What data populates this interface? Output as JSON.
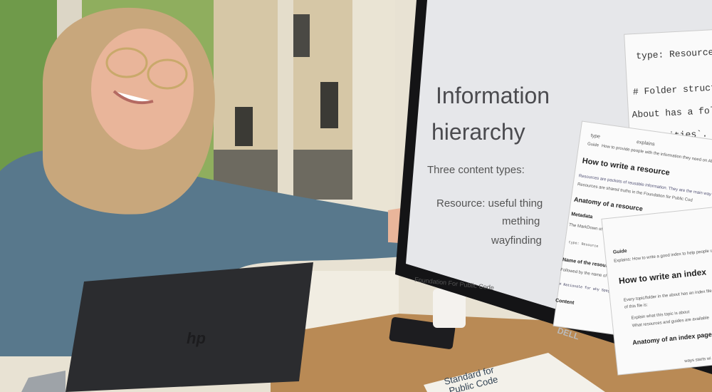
{
  "slide": {
    "title_line1": "Information",
    "title_line2": "hierarchy",
    "subtitle": "Three content types:",
    "bullets": [
      "Resource: useful thing",
      "mething",
      "wayfinding"
    ],
    "footer": "Foundation For Public Code"
  },
  "card1": {
    "lines": [
      "type: Resource",
      "# Folder structur",
      "About has a folde",
      "ities`. Al"
    ]
  },
  "card2": {
    "type_label": "type",
    "type_value": "Guide",
    "explains_label": "explains",
    "explains_value": "How to provide people with the information they need on About",
    "heading": "How to write a resource",
    "para1": "Resources are packets of reusable information. They are the main way",
    "para2": "Resources are shared truths in the Foundation for Public Cod",
    "sub1": "Anatomy of a resource",
    "sub2": "Metadata",
    "para3": "The MarkDown of a resource h",
    "code1": "type: Resource",
    "sub3": "Name of the resource",
    "para4": "Followed by the name of the resource",
    "code2": "# Rationale for why Spaghetti is the mo",
    "sub4": "Content"
  },
  "card3": {
    "label": "Guide",
    "explains": "Explains: How to write a good index to help people u",
    "heading": "How to write an index",
    "para1": "Every topic/folder in the about has an index file n",
    "para2": "of this file is:",
    "bullets": [
      "Explain what this topic is about",
      "What resources and guides are available"
    ],
    "sub1": "Anatomy of an index page",
    "para3": "ways starts wi"
  },
  "brands": {
    "monitor": "DELL",
    "laptop": "hp"
  },
  "book": {
    "line1": "Standard for",
    "line2": "Public Code"
  }
}
